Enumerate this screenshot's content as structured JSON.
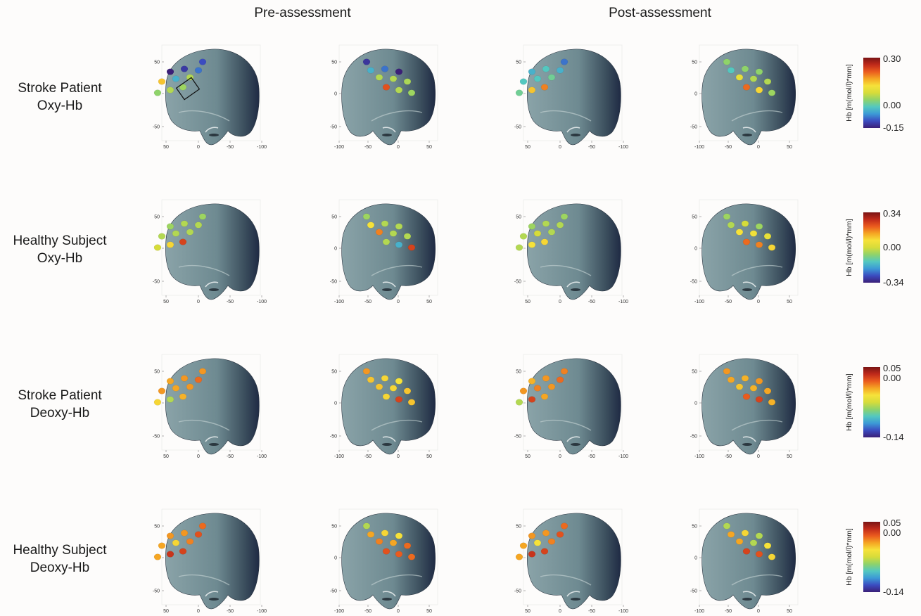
{
  "figure": {
    "column_headers": [
      "Pre-assessment",
      "Post-assessment"
    ],
    "rows": [
      {
        "label_line1": "Stroke Patient",
        "label_line2": "Oxy-Hb",
        "colorbar": {
          "title": "Hb [m(mol/l)*mm]",
          "max": "0.30",
          "mid": "0.00",
          "min": "-0.15"
        }
      },
      {
        "label_line1": "Healthy Subject",
        "label_line2": "Oxy-Hb",
        "colorbar": {
          "title": "Hb [m(mol/l)*mm]",
          "max": "0.34",
          "mid": "0.00",
          "min": "-0.34"
        }
      },
      {
        "label_line1": "Stroke Patient",
        "label_line2": "Deoxy-Hb",
        "colorbar": {
          "title": "Hb [m(mol/l)*mm]",
          "max": "0.05",
          "mid": "0.00",
          "min": "-0.14"
        }
      },
      {
        "label_line1": "Healthy Subject",
        "label_line2": "Deoxy-Hb",
        "colorbar": {
          "title": "Hb [m(mol/l)*mm]",
          "max": "0.05",
          "mid": "0.00",
          "min": "-0.14"
        }
      }
    ],
    "axis_ticks": {
      "y": [
        "50",
        "0",
        "-50"
      ],
      "x_left_view": [
        "50",
        "0",
        "-50",
        "-100"
      ],
      "x_right_view": [
        "-100",
        "-50",
        "0",
        "50"
      ]
    },
    "colormap": [
      "#3b1f78",
      "#3b4cc0",
      "#3c9ad6",
      "#53c8c0",
      "#8fd36a",
      "#d6dc3a",
      "#f6e23a",
      "#f5a623",
      "#ea5b1e",
      "#c02a1a",
      "#7a1414"
    ],
    "channel_values": [
      [
        [
          0.1,
          0.0,
          0.06,
          0.15,
          0.65,
          0.25,
          0.45,
          0.4,
          0.45,
          0.42
        ],
        [
          0.05,
          0.0,
          0.15,
          0.25,
          0.44,
          0.45,
          0.45,
          0.42,
          0.45,
          0.82
        ],
        [
          0.15,
          0.25,
          0.3,
          0.25,
          0.3,
          0.3,
          0.35,
          0.35,
          0.65,
          0.75
        ],
        [
          0.4,
          0.4,
          0.4,
          0.3,
          0.45,
          0.45,
          0.55,
          0.42,
          0.62,
          0.78
        ]
      ],
      [
        [
          0.42,
          0.42,
          0.45,
          0.45,
          0.45,
          0.45,
          0.45,
          0.5,
          0.62,
          0.85
        ],
        [
          0.42,
          0.45,
          0.45,
          0.6,
          0.45,
          0.45,
          0.75,
          0.85,
          0.25,
          0.45
        ],
        [
          0.42,
          0.42,
          0.45,
          0.45,
          0.45,
          0.5,
          0.45,
          0.45,
          0.6,
          0.62
        ],
        [
          0.42,
          0.42,
          0.5,
          0.45,
          0.55,
          0.58,
          0.6,
          0.62,
          0.75,
          0.78
        ]
      ],
      [
        [
          0.72,
          0.7,
          0.72,
          0.78,
          0.72,
          0.7,
          0.72,
          0.62,
          0.45,
          0.68
        ],
        [
          0.72,
          0.6,
          0.62,
          0.65,
          0.65,
          0.62,
          0.65,
          0.65,
          0.85,
          0.62
        ],
        [
          0.75,
          0.68,
          0.72,
          0.78,
          0.72,
          0.75,
          0.72,
          0.45,
          0.85,
          0.7
        ],
        [
          0.72,
          0.72,
          0.68,
          0.7,
          0.7,
          0.68,
          0.65,
          0.68,
          0.85,
          0.8
        ]
      ],
      [
        [
          0.78,
          0.72,
          0.72,
          0.82,
          0.7,
          0.62,
          0.75,
          0.7,
          0.88,
          0.85
        ],
        [
          0.45,
          0.6,
          0.62,
          0.7,
          0.78,
          0.7,
          0.75,
          0.78,
          0.8,
          0.82
        ],
        [
          0.78,
          0.72,
          0.72,
          0.82,
          0.7,
          0.6,
          0.75,
          0.7,
          0.88,
          0.85
        ],
        [
          0.45,
          0.45,
          0.62,
          0.7,
          0.6,
          0.45,
          0.7,
          0.62,
          0.82,
          0.85
        ]
      ]
    ]
  }
}
